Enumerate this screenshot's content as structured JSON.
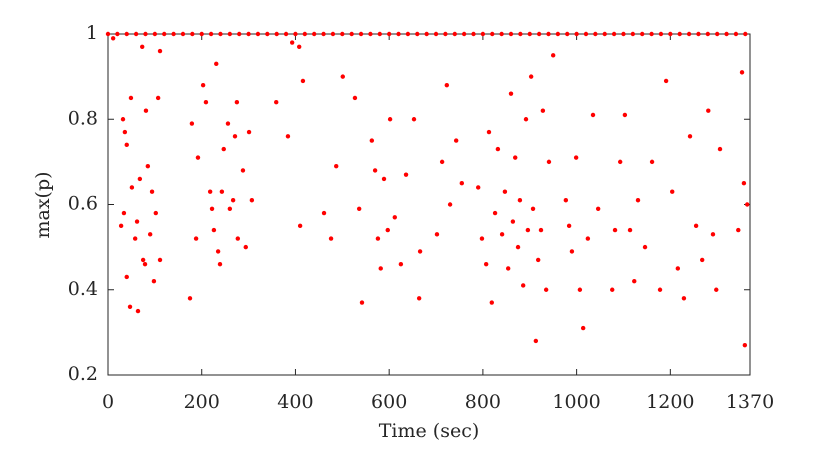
{
  "chart_data": {
    "type": "scatter",
    "xlabel": "Time (sec)",
    "ylabel": "max(p)",
    "color": "#ff0000",
    "x": [
      0,
      20,
      40,
      60,
      80,
      100,
      120,
      140,
      160,
      180,
      200,
      220,
      240,
      260,
      280,
      300,
      320,
      340,
      360,
      380,
      400,
      420,
      440,
      460,
      480,
      500,
      520,
      540,
      560,
      580,
      600,
      620,
      640,
      660,
      680,
      700,
      720,
      740,
      760,
      780,
      800,
      820,
      840,
      860,
      880,
      900,
      920,
      940,
      960,
      980,
      1000,
      1020,
      1040,
      1060,
      1080,
      1100,
      1120,
      1140,
      1160,
      1180,
      1200,
      1220,
      1240,
      1260,
      1280,
      1300,
      1320,
      1340,
      1360,
      11,
      32,
      36,
      40,
      28,
      34,
      40,
      47,
      49,
      51,
      58,
      62,
      64,
      68,
      73,
      75,
      79,
      81,
      85,
      90,
      94,
      98,
      102,
      107,
      111,
      111,
      175,
      179,
      188,
      192,
      203,
      209,
      218,
      222,
      226,
      231,
      235,
      239,
      243,
      247,
      256,
      260,
      267,
      271,
      275,
      277,
      288,
      294,
      301,
      307,
      359,
      384,
      410,
      393,
      408,
      416,
      461,
      476,
      487,
      501,
      527,
      536,
      542,
      563,
      570,
      576,
      582,
      589,
      597,
      602,
      612,
      625,
      636,
      653,
      664,
      666,
      702,
      713,
      723,
      730,
      743,
      755,
      790,
      798,
      807,
      813,
      819,
      826,
      832,
      841,
      847,
      854,
      860,
      864,
      869,
      875,
      879,
      886,
      892,
      896,
      903,
      907,
      913,
      918,
      924,
      928,
      935,
      941,
      950,
      977,
      984,
      990,
      999,
      1007,
      1014,
      1024,
      1035,
      1046,
      1076,
      1082,
      1093,
      1103,
      1114,
      1123,
      1131,
      1146,
      1161,
      1178,
      1191,
      1204,
      1216,
      1229,
      1242,
      1255,
      1268,
      1281,
      1291,
      1298,
      1306,
      1345,
      1353,
      1357,
      1359,
      1364
    ],
    "values": [
      1,
      1,
      1,
      1,
      1,
      1,
      1,
      1,
      1,
      1,
      1,
      1,
      1,
      1,
      1,
      1,
      1,
      1,
      1,
      1,
      1,
      1,
      1,
      1,
      1,
      1,
      1,
      1,
      1,
      1,
      1,
      1,
      1,
      1,
      1,
      1,
      1,
      1,
      1,
      1,
      1,
      1,
      1,
      1,
      1,
      1,
      1,
      1,
      1,
      1,
      1,
      1,
      1,
      1,
      1,
      1,
      1,
      1,
      1,
      1,
      1,
      1,
      1,
      1,
      1,
      1,
      1,
      1,
      1,
      0.99,
      0.8,
      0.77,
      0.74,
      0.55,
      0.58,
      0.43,
      0.36,
      0.85,
      0.64,
      0.52,
      0.56,
      0.35,
      0.66,
      0.97,
      0.47,
      0.46,
      0.82,
      0.69,
      0.53,
      0.63,
      0.42,
      0.58,
      0.85,
      0.47,
      0.96,
      0.38,
      0.79,
      0.52,
      0.71,
      0.88,
      0.84,
      0.63,
      0.59,
      0.54,
      0.93,
      0.49,
      0.46,
      0.63,
      0.73,
      0.79,
      0.59,
      0.61,
      0.76,
      0.84,
      0.52,
      0.68,
      0.5,
      0.77,
      0.61,
      0.84,
      0.76,
      0.55,
      0.98,
      0.97,
      0.89,
      0.58,
      0.52,
      0.69,
      0.9,
      0.85,
      0.59,
      0.37,
      0.75,
      0.68,
      0.52,
      0.45,
      0.66,
      0.54,
      0.8,
      0.57,
      0.46,
      0.67,
      0.8,
      0.38,
      0.49,
      0.53,
      0.7,
      0.88,
      0.6,
      0.75,
      0.65,
      0.64,
      0.52,
      0.46,
      0.77,
      0.37,
      0.58,
      0.73,
      0.53,
      0.63,
      0.45,
      0.86,
      0.56,
      0.71,
      0.5,
      0.61,
      0.41,
      0.8,
      0.54,
      0.9,
      0.59,
      0.28,
      0.47,
      0.54,
      0.82,
      0.4,
      0.7,
      0.95,
      0.61,
      0.55,
      0.49,
      0.71,
      0.4,
      0.31,
      0.52,
      0.81,
      0.59,
      0.4,
      0.54,
      0.7,
      0.81,
      0.54,
      0.42,
      0.61,
      0.5,
      0.7,
      0.4,
      0.89,
      0.63,
      0.45,
      0.38,
      0.76,
      0.55,
      0.47,
      0.82,
      0.53,
      0.4,
      0.73,
      0.54,
      0.91,
      0.65,
      0.27,
      0.6
    ],
    "xlim": [
      0,
      1370
    ],
    "xticks": [
      0,
      200,
      400,
      600,
      800,
      1000,
      1200,
      1370
    ],
    "ylim": [
      0.2,
      1
    ],
    "yticks": [
      0.2,
      0.4,
      0.6,
      0.8,
      1
    ]
  }
}
